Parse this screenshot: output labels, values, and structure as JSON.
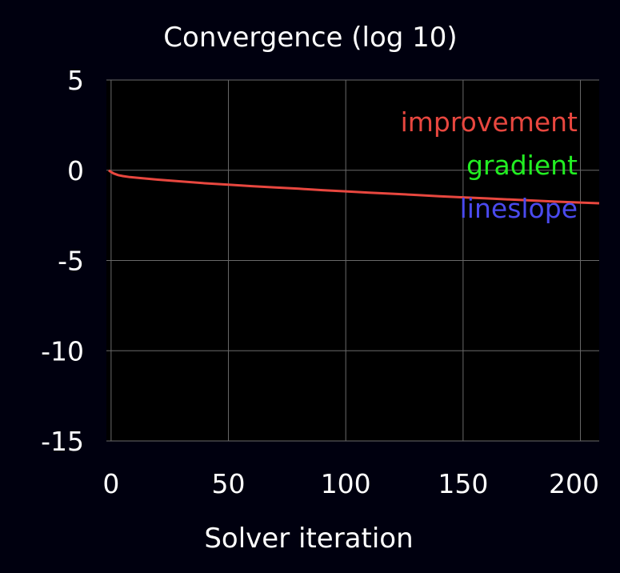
{
  "chart_data": {
    "type": "line",
    "title": "Convergence (log 10)",
    "xlabel": "Solver iteration",
    "ylabel": "",
    "xlim": [
      -2,
      208
    ],
    "ylim": [
      -15,
      5
    ],
    "xticks": [
      0,
      50,
      100,
      150,
      200
    ],
    "yticks": [
      5,
      0,
      -5,
      -10,
      -15
    ],
    "xtick_labels": [
      "0",
      "50",
      "100",
      "150",
      "200"
    ],
    "ytick_labels": [
      "5",
      "0",
      "-5",
      "-10",
      "-15"
    ],
    "grid": true,
    "legend_position": "top-right",
    "series": [
      {
        "name": "improvement",
        "color": "#e8473f",
        "x": [
          -1,
          0,
          1,
          2,
          3,
          5,
          8,
          12,
          20,
          30,
          40,
          50,
          60,
          70,
          80,
          90,
          100,
          110,
          120,
          130,
          140,
          150,
          160,
          170,
          180,
          190,
          200,
          208
        ],
        "y": [
          0.0,
          -0.1,
          -0.17,
          -0.22,
          -0.27,
          -0.32,
          -0.38,
          -0.43,
          -0.52,
          -0.62,
          -0.72,
          -0.8,
          -0.88,
          -0.95,
          -1.02,
          -1.1,
          -1.17,
          -1.24,
          -1.3,
          -1.37,
          -1.44,
          -1.5,
          -1.56,
          -1.62,
          -1.68,
          -1.74,
          -1.79,
          -1.83
        ]
      },
      {
        "name": "gradient",
        "color": "#22ee22",
        "x": [],
        "y": []
      },
      {
        "name": "lineslope",
        "color": "#4a4aee",
        "x": [],
        "y": []
      }
    ]
  }
}
